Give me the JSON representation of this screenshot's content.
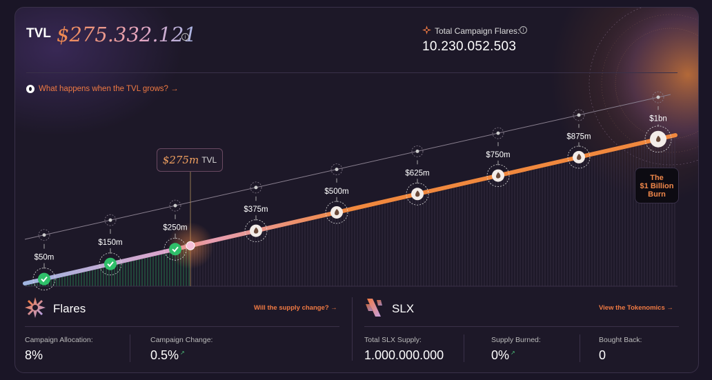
{
  "header": {
    "tvl_label": "TVL",
    "tvl_value": "$275.332.121",
    "flares_label": "Total Campaign Flares:",
    "flares_value": "10.230.052.503"
  },
  "tvl_link": "What happens when the TVL grows? →",
  "chart": {
    "current_tag_amount": "$275m",
    "current_tag_unit": "TVL",
    "milestones": [
      {
        "label": "$50m",
        "status": "reached"
      },
      {
        "label": "$150m",
        "status": "reached"
      },
      {
        "label": "$250m",
        "status": "reached"
      },
      {
        "label": "$375m",
        "status": "pending"
      },
      {
        "label": "$500m",
        "status": "pending"
      },
      {
        "label": "$625m",
        "status": "pending"
      },
      {
        "label": "$750m",
        "status": "pending"
      },
      {
        "label": "$875m",
        "status": "pending"
      },
      {
        "label": "$1bn",
        "status": "pending"
      }
    ],
    "current_tvl_m": 275,
    "max_tvl_m": 1000,
    "burn_label_1": "The",
    "burn_label_2": "$1 Billion",
    "burn_label_3": "Burn",
    "colors": {
      "reached": "#2fbf6a",
      "line_orange": "#f0883e",
      "line_pink": "#e5a2c8",
      "line_blue": "#9fb4e0"
    }
  },
  "flares": {
    "title": "Flares",
    "link": "Will the supply change? →",
    "stats": [
      {
        "label": "Campaign Allocation:",
        "value": "8%"
      },
      {
        "label": "Campaign Change:",
        "value": "0.5%"
      }
    ]
  },
  "slx": {
    "title": "SLX",
    "link": "View the Tokenomics →",
    "stats": [
      {
        "label": "Total SLX Supply:",
        "value": "1.000.000.000"
      },
      {
        "label": "Supply Burned:",
        "value": "0%"
      },
      {
        "label": "Bought Back:",
        "value": "0"
      }
    ]
  },
  "icons": [
    "info-icon",
    "flare-star-icon",
    "drop-icon",
    "check-icon",
    "flame-icon",
    "slx-logo-icon",
    "globe-graphic"
  ]
}
